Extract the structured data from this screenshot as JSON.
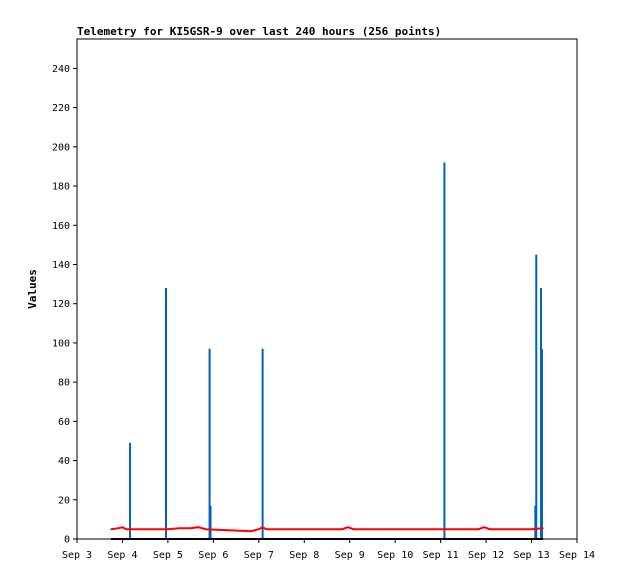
{
  "chart_data": {
    "type": "line",
    "title": "Telemetry for KI5GSR-9 over last 240 hours (256 points)",
    "xlabel": "",
    "ylabel": "Values",
    "x_axis": {
      "type": "date",
      "range": [
        "Sep 3",
        "Sep 14"
      ],
      "tick_labels": [
        "Sep 3",
        "Sep 4",
        "Sep 5",
        "Sep 6",
        "Sep 7",
        "Sep 8",
        "Sep 9",
        "Sep 10",
        "Sep 11",
        "Sep 12",
        "Sep 13",
        "Sep 14"
      ]
    },
    "y_axis": {
      "range": [
        0,
        255
      ],
      "tick_labels": [
        "0",
        "20",
        "40",
        "60",
        "80",
        "100",
        "120",
        "140",
        "160",
        "180",
        "200",
        "220",
        "240"
      ]
    },
    "grid": false,
    "legend": "none",
    "series": [
      {
        "color": "#0063b5",
        "style": "impulse",
        "points": [
          {
            "x": "Sep 4 04:00",
            "y": 49
          },
          {
            "x": "Sep 4 23:00",
            "y": 128
          },
          {
            "x": "Sep 5 22:00",
            "y": 97
          },
          {
            "x": "Sep 5 22:30",
            "y": 17
          },
          {
            "x": "Sep 7 02:00",
            "y": 97
          },
          {
            "x": "Sep 11 02:00",
            "y": 192
          },
          {
            "x": "Sep 13 02:00",
            "y": 17
          },
          {
            "x": "Sep 13 02:30",
            "y": 145
          },
          {
            "x": "Sep 13 05:00",
            "y": 128
          },
          {
            "x": "Sep 13 05:30",
            "y": 97
          }
        ]
      },
      {
        "color": "#ff0000",
        "style": "line",
        "points": [
          {
            "x": "Sep 3 18:00",
            "y": 5
          },
          {
            "x": "Sep 3 22:00",
            "y": 5.5
          },
          {
            "x": "Sep 4 00:00",
            "y": 6
          },
          {
            "x": "Sep 4 02:00",
            "y": 5
          },
          {
            "x": "Sep 5 00:00",
            "y": 5
          },
          {
            "x": "Sep 5 06:00",
            "y": 5.5
          },
          {
            "x": "Sep 5 12:00",
            "y": 5.5
          },
          {
            "x": "Sep 5 16:00",
            "y": 6
          },
          {
            "x": "Sep 5 20:00",
            "y": 5
          },
          {
            "x": "Sep 6 08:00",
            "y": 4.5
          },
          {
            "x": "Sep 6 20:00",
            "y": 4
          },
          {
            "x": "Sep 7 00:00",
            "y": 5
          },
          {
            "x": "Sep 7 02:00",
            "y": 6
          },
          {
            "x": "Sep 7 04:00",
            "y": 5
          },
          {
            "x": "Sep 8 20:00",
            "y": 5
          },
          {
            "x": "Sep 8 23:00",
            "y": 6
          },
          {
            "x": "Sep 9 02:00",
            "y": 5
          },
          {
            "x": "Sep 11 20:00",
            "y": 5
          },
          {
            "x": "Sep 11 23:00",
            "y": 6
          },
          {
            "x": "Sep 12 02:00",
            "y": 5
          },
          {
            "x": "Sep 13 00:00",
            "y": 5
          },
          {
            "x": "Sep 13 06:00",
            "y": 5.5
          }
        ]
      },
      {
        "color": "#000000",
        "style": "line",
        "points": [
          {
            "x": "Sep 3 18:00",
            "y": 0
          },
          {
            "x": "Sep 13 06:00",
            "y": 0
          }
        ]
      }
    ]
  }
}
